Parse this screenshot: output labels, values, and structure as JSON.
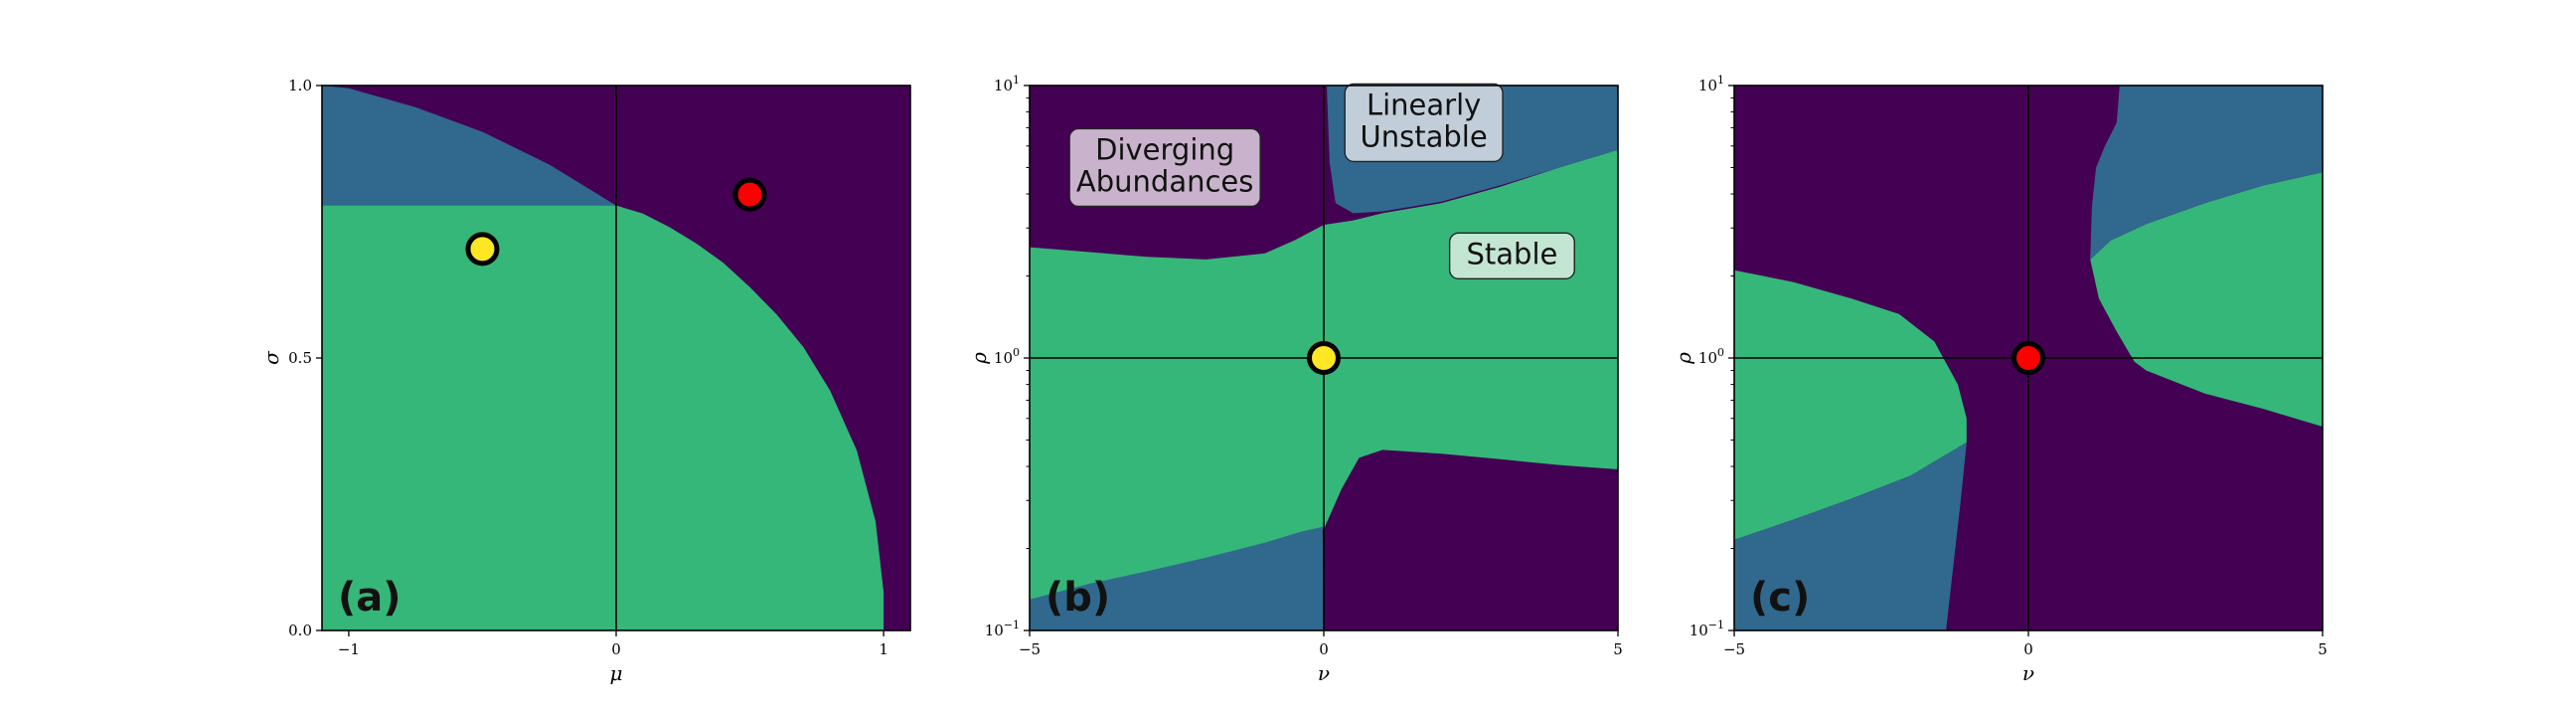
{
  "colors": {
    "stable": "#35b779",
    "linearly_unstable": "#31688e",
    "diverging": "#440154",
    "yellow_marker": "#fde725",
    "red_marker": "#ff0000"
  },
  "chart_data": [
    {
      "type": "heatmap",
      "panel_label": "(a)",
      "xlabel": "μ",
      "ylabel": "σ",
      "xlim": [
        -1.1,
        1.1
      ],
      "ylim": [
        0.0,
        1.0
      ],
      "x_ticks": [
        {
          "v": -1,
          "t": "−1"
        },
        {
          "v": 0,
          "t": "0"
        },
        {
          "v": 1,
          "t": "1"
        }
      ],
      "y_ticks": [
        {
          "v": 0.0,
          "t": "0.0"
        },
        {
          "v": 0.5,
          "t": "0.5"
        },
        {
          "v": 1.0,
          "t": "1.0"
        }
      ],
      "guide_lines": {
        "x": 0,
        "y": null
      },
      "regions": [
        {
          "name": "Linearly Unstable",
          "color_key": "linearly_unstable",
          "points": [
            [
              -1.1,
              0.78
            ],
            [
              -0.74,
              0.78
            ],
            [
              -0.37,
              0.78
            ],
            [
              0.0,
              0.78
            ],
            [
              -0.25,
              0.855
            ],
            [
              -0.5,
              0.915
            ],
            [
              -0.75,
              0.96
            ],
            [
              -1.0,
              0.995
            ],
            [
              -1.1,
              1.0
            ]
          ]
        },
        {
          "name": "Stable",
          "color_key": "stable",
          "points": [
            [
              -1.1,
              0.0
            ],
            [
              1.0,
              0.0
            ],
            [
              1.0,
              0.07
            ],
            [
              0.97,
              0.2
            ],
            [
              0.9,
              0.33
            ],
            [
              0.8,
              0.44
            ],
            [
              0.7,
              0.52
            ],
            [
              0.6,
              0.58
            ],
            [
              0.5,
              0.63
            ],
            [
              0.4,
              0.675
            ],
            [
              0.3,
              0.71
            ],
            [
              0.2,
              0.74
            ],
            [
              0.1,
              0.765
            ],
            [
              0.0,
              0.78
            ],
            [
              -1.1,
              0.78
            ]
          ]
        }
      ],
      "markers": [
        {
          "x": -0.5,
          "y": 0.7,
          "color_key": "yellow_marker"
        },
        {
          "x": 0.5,
          "y": 0.8,
          "color_key": "red_marker"
        }
      ],
      "annotations": []
    },
    {
      "type": "heatmap",
      "panel_label": "(b)",
      "xlabel": "ν",
      "ylabel": "ρ",
      "xlim": [
        -5,
        5
      ],
      "ylim": [
        0.1,
        10
      ],
      "yscale": "log",
      "x_ticks": [
        {
          "v": -5,
          "t": "−5"
        },
        {
          "v": 0,
          "t": "0"
        },
        {
          "v": 5,
          "t": "5"
        }
      ],
      "y_ticks": [
        {
          "v": 0.1,
          "base": "10",
          "exp": "−1"
        },
        {
          "v": 1,
          "base": "10",
          "exp": "0"
        },
        {
          "v": 10,
          "base": "10",
          "exp": "1"
        }
      ],
      "guide_lines": {
        "x": 0,
        "y": 1
      },
      "regions": [
        {
          "name": "Stable",
          "color_key": "stable",
          "points": [
            [
              -5,
              0.128
            ],
            [
              -4,
              0.145
            ],
            [
              -3,
              0.16
            ],
            [
              -2,
              0.175
            ],
            [
              -1,
              0.195
            ],
            [
              -0.5,
              0.22
            ],
            [
              0,
              0.235
            ],
            [
              0.3,
              0.33
            ],
            [
              0.6,
              0.43
            ],
            [
              1,
              0.46
            ],
            [
              2,
              0.445
            ],
            [
              3,
              0.425
            ],
            [
              4,
              0.405
            ],
            [
              5,
              0.39
            ],
            [
              5,
              5.8
            ],
            [
              4,
              5.0
            ],
            [
              3,
              4.25
            ],
            [
              2,
              3.7
            ],
            [
              1,
              3.4
            ],
            [
              0.5,
              3.2
            ],
            [
              0,
              3.08
            ],
            [
              -0.5,
              2.7
            ],
            [
              -1,
              2.42
            ],
            [
              -2,
              2.3
            ],
            [
              -3,
              2.35
            ],
            [
              -4,
              2.45
            ],
            [
              -5,
              2.55
            ]
          ]
        },
        {
          "name": "Linearly Unstable",
          "color_key": "linearly_unstable",
          "points": [
            [
              0.05,
              10
            ],
            [
              0.1,
              5.2
            ],
            [
              0.2,
              3.7
            ],
            [
              0.5,
              3.4
            ],
            [
              1,
              3.45
            ],
            [
              2,
              3.75
            ],
            [
              3,
              4.3
            ],
            [
              4,
              5.0
            ],
            [
              5,
              5.8
            ],
            [
              5,
              10
            ]
          ]
        },
        {
          "name": "Linearly Unstable",
          "color_key": "linearly_unstable",
          "points": [
            [
              -5,
              0.1
            ],
            [
              0.0,
              0.1
            ],
            [
              -0.02,
              0.24
            ],
            [
              -0.4,
              0.23
            ],
            [
              -1,
              0.21
            ],
            [
              -2,
              0.185
            ],
            [
              -3,
              0.165
            ],
            [
              -4,
              0.148
            ],
            [
              -5,
              0.13
            ]
          ]
        }
      ],
      "markers": [
        {
          "x": 0,
          "y": 1,
          "color_key": "yellow_marker"
        }
      ],
      "annotations": [
        {
          "lines": [
            "Diverging",
            "Abundances"
          ],
          "x": -2.7,
          "y": 5.0,
          "bg": "#c9b3cc"
        },
        {
          "lines": [
            "Linearly",
            "Unstable"
          ],
          "x": 1.7,
          "y": 7.3,
          "bg": "#c1ced9"
        },
        {
          "lines": [
            "Stable"
          ],
          "x": 3.2,
          "y": 2.37,
          "bg": "#c3e6d3"
        }
      ]
    },
    {
      "type": "heatmap",
      "panel_label": "(c)",
      "xlabel": "ν",
      "ylabel": "ρ",
      "xlim": [
        -5,
        5
      ],
      "ylim": [
        0.1,
        10
      ],
      "yscale": "log",
      "x_ticks": [
        {
          "v": -5,
          "t": "−5"
        },
        {
          "v": 0,
          "t": "0"
        },
        {
          "v": 5,
          "t": "5"
        }
      ],
      "y_ticks": [
        {
          "v": 0.1,
          "base": "10",
          "exp": "−1"
        },
        {
          "v": 1,
          "base": "10",
          "exp": "0"
        },
        {
          "v": 10,
          "base": "10",
          "exp": "1"
        }
      ],
      "guide_lines": {
        "x": 0,
        "y": 1
      },
      "regions": [
        {
          "name": "Stable",
          "color_key": "stable",
          "points": [
            [
              -5,
              0.215
            ],
            [
              -4,
              0.255
            ],
            [
              -3,
              0.305
            ],
            [
              -2,
              0.37
            ],
            [
              -1.05,
              0.49
            ],
            [
              -1.05,
              0.6
            ],
            [
              -1.2,
              0.8
            ],
            [
              -1.6,
              1.15
            ],
            [
              -2.2,
              1.45
            ],
            [
              -3,
              1.65
            ],
            [
              -4,
              1.9
            ],
            [
              -5,
              2.1
            ]
          ]
        },
        {
          "name": "Linearly Unstable",
          "color_key": "linearly_unstable",
          "points": [
            [
              -5,
              0.1
            ],
            [
              -1.4,
              0.1
            ],
            [
              -1.15,
              0.3
            ],
            [
              -1.05,
              0.49
            ],
            [
              -2,
              0.37
            ],
            [
              -3,
              0.305
            ],
            [
              -4,
              0.255
            ],
            [
              -5,
              0.215
            ]
          ]
        },
        {
          "name": "Stable",
          "color_key": "stable",
          "points": [
            [
              1.05,
              2.3
            ],
            [
              1.2,
              1.65
            ],
            [
              1.5,
              1.25
            ],
            [
              1.8,
              0.97
            ],
            [
              2,
              0.9
            ],
            [
              3,
              0.74
            ],
            [
              4,
              0.65
            ],
            [
              5,
              0.56
            ],
            [
              5,
              4.8
            ],
            [
              4,
              4.3
            ],
            [
              3,
              3.7
            ],
            [
              2,
              3.1
            ],
            [
              1.4,
              2.7
            ]
          ]
        },
        {
          "name": "Linearly Unstable",
          "color_key": "linearly_unstable",
          "points": [
            [
              1.05,
              2.3
            ],
            [
              1.08,
              3.6
            ],
            [
              1.15,
              5.0
            ],
            [
              1.3,
              6.0
            ],
            [
              1.5,
              7.3
            ],
            [
              1.55,
              10
            ],
            [
              5,
              10
            ],
            [
              5,
              4.8
            ],
            [
              4,
              4.3
            ],
            [
              3,
              3.7
            ],
            [
              2,
              3.1
            ],
            [
              1.4,
              2.7
            ]
          ]
        }
      ],
      "markers": [
        {
          "x": 0,
          "y": 1,
          "color_key": "red_marker"
        }
      ],
      "annotations": []
    }
  ]
}
